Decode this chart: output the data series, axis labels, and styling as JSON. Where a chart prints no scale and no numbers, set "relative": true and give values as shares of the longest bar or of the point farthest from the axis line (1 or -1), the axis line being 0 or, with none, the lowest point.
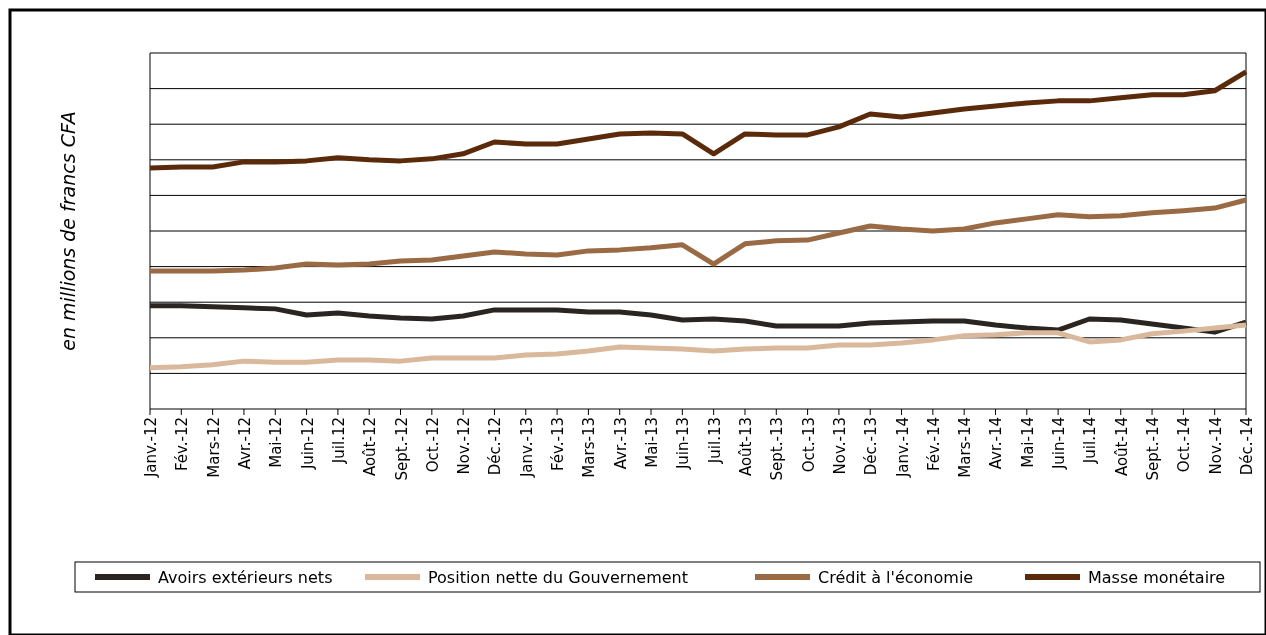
{
  "chart_data": {
    "type": "line",
    "relative": true,
    "ylabel": "en millions de francs CFA",
    "grid": "y",
    "legend": "bottom",
    "line_style": "solid",
    "marker": "none",
    "categories": [
      "Janv.-12",
      "Fév.-12",
      "Mars-12",
      "Avr.-12",
      "Mai-12",
      "Juin-12",
      "Juil.12",
      "Août-12",
      "Sept.-12",
      "Oct.-12",
      "Nov.-12",
      "Déc.-12",
      "Janv.-13",
      "Fév.-13",
      "Mars-13",
      "Avr.-13",
      "Mai-13",
      "Juin-13",
      "Juil.13",
      "Août-13",
      "Sept.-13",
      "Oct.-13",
      "Nov.-13",
      "Déc.-13",
      "Janv.-14",
      "Fév.-14",
      "Mars-14",
      "Avr.-14",
      "Mai-14",
      "Juin-14",
      "Juil.14",
      "Août-14",
      "Sept.-14",
      "Oct.-14",
      "Nov.-14",
      "Déc.-14"
    ],
    "series": [
      {
        "name": "Avoirs extérieurs nets",
        "color": "#2b2522",
        "values": [
          0.306,
          0.306,
          0.303,
          0.3,
          0.297,
          0.279,
          0.285,
          0.276,
          0.27,
          0.267,
          0.276,
          0.294,
          0.294,
          0.294,
          0.288,
          0.288,
          0.279,
          0.264,
          0.267,
          0.261,
          0.246,
          0.246,
          0.246,
          0.255,
          0.258,
          0.261,
          0.261,
          0.249,
          0.24,
          0.234,
          0.267,
          0.264,
          0.252,
          0.24,
          0.228,
          0.258
        ]
      },
      {
        "name": "Position nette du Gouvernement",
        "color": "#d9b89c",
        "values": [
          0.122,
          0.125,
          0.131,
          0.142,
          0.139,
          0.139,
          0.145,
          0.145,
          0.142,
          0.151,
          0.151,
          0.151,
          0.16,
          0.163,
          0.172,
          0.184,
          0.181,
          0.178,
          0.172,
          0.178,
          0.181,
          0.181,
          0.19,
          0.19,
          0.196,
          0.205,
          0.217,
          0.22,
          0.226,
          0.226,
          0.199,
          0.205,
          0.223,
          0.231,
          0.24,
          0.249
        ]
      },
      {
        "name": "Crédit à l'économie",
        "color": "#9a6a44",
        "values": [
          0.409,
          0.409,
          0.409,
          0.412,
          0.418,
          0.43,
          0.427,
          0.43,
          0.439,
          0.442,
          0.454,
          0.466,
          0.46,
          0.457,
          0.469,
          0.472,
          0.478,
          0.487,
          0.43,
          0.49,
          0.499,
          0.501,
          0.522,
          0.543,
          0.534,
          0.528,
          0.534,
          0.552,
          0.564,
          0.576,
          0.57,
          0.573,
          0.582,
          0.588,
          0.596,
          0.62
        ]
      },
      {
        "name": "Masse monétaire",
        "color": "#5a2a0a",
        "values": [
          0.715,
          0.718,
          0.718,
          0.733,
          0.733,
          0.736,
          0.745,
          0.739,
          0.736,
          0.742,
          0.757,
          0.792,
          0.786,
          0.786,
          0.801,
          0.816,
          0.819,
          0.816,
          0.757,
          0.816,
          0.813,
          0.813,
          0.837,
          0.875,
          0.866,
          0.878,
          0.89,
          0.899,
          0.908,
          0.914,
          0.914,
          0.923,
          0.932,
          0.932,
          0.944,
          1
        ]
      }
    ]
  }
}
